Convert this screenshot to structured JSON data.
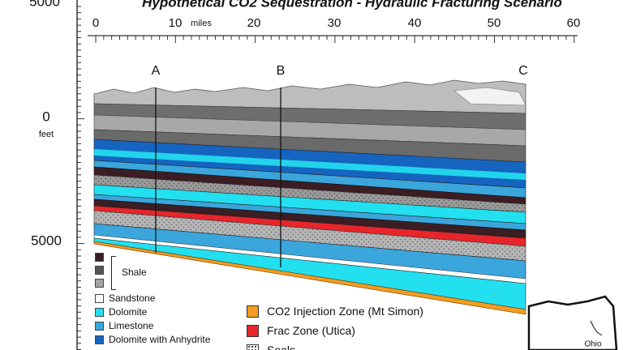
{
  "title": "Hypothetical CO2 Sequestration - Hydraulic Fracturing Scenario",
  "left_axis": {
    "top_label": "5000",
    "zero_label": "0",
    "unit": "feet",
    "bottom_label": "5000"
  },
  "distance_axis": {
    "ticks": [
      "0",
      "10",
      "20",
      "30",
      "40",
      "50",
      "60"
    ],
    "unit": "miles"
  },
  "sections": [
    "A",
    "B",
    "C"
  ],
  "legend": {
    "shale_label": "Shale",
    "items": [
      {
        "label": "Sandstone",
        "color": "#ffffff"
      },
      {
        "label": "Dolomite",
        "color": "#22e0f0"
      },
      {
        "label": "Limestone",
        "color": "#3aa6dc"
      },
      {
        "label": "Dolomite with Anhydrite",
        "color": "#1565c0"
      }
    ],
    "shale_colors": [
      "#3a1e24",
      "#555555",
      "#a5a5a5"
    ],
    "zones": [
      {
        "label": "CO2 Injection Zone (Mt Simon)",
        "color": "#f39c1e"
      },
      {
        "label": "Frac Zone (Utica)",
        "color": "#e8252a"
      },
      {
        "label": "Seals",
        "color": "#888888"
      }
    ]
  },
  "map": {
    "state": "Ohio"
  }
}
